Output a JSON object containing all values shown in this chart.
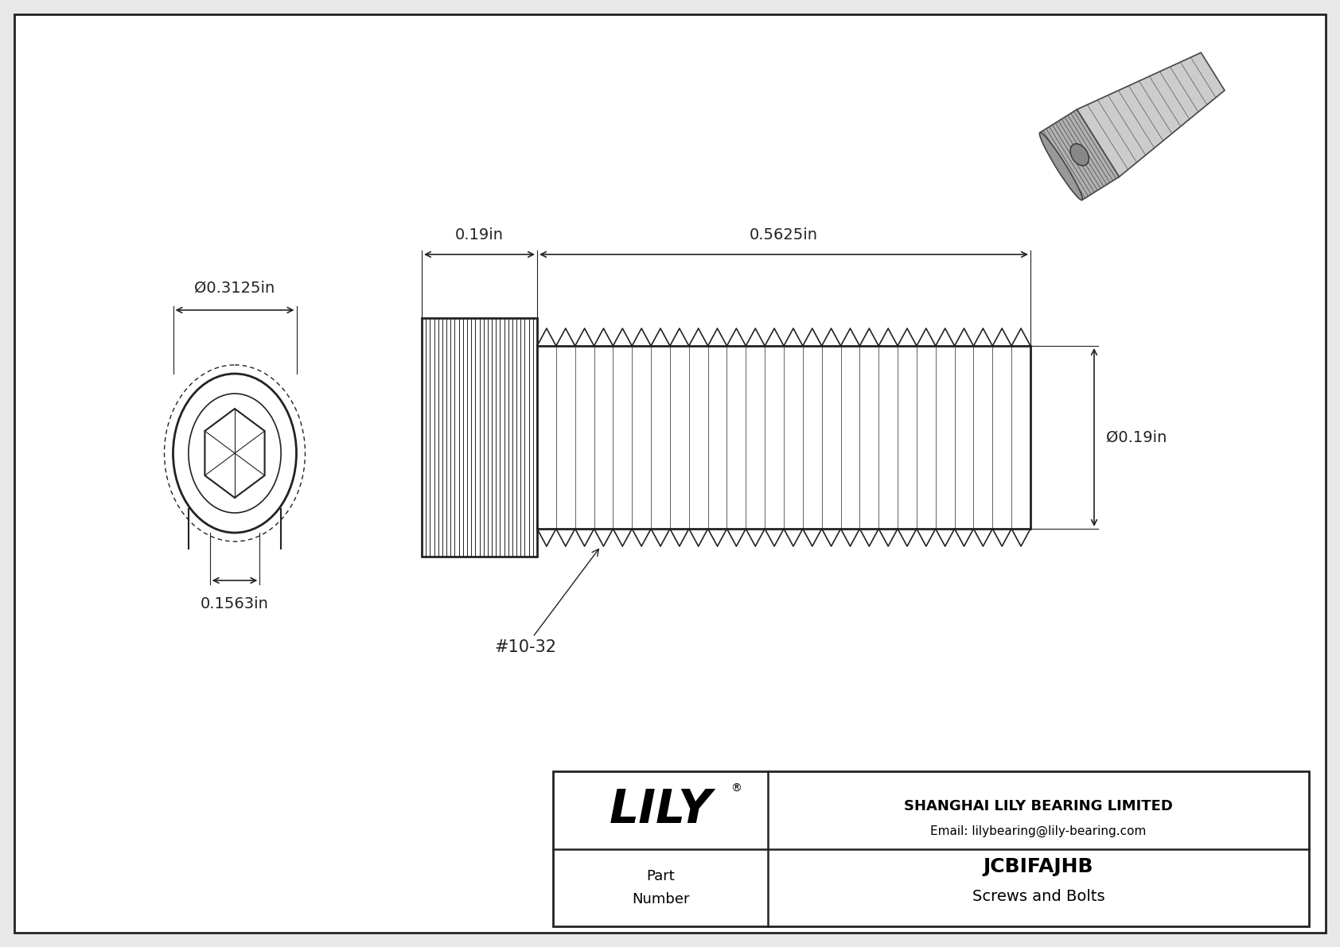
{
  "bg_color": "#e8e8e8",
  "inner_bg": "#f5f5f5",
  "border_color": "#222222",
  "line_color": "#222222",
  "text_color": "#222222",
  "title": "JCBIFAJHB",
  "subtitle": "Screws and Bolts",
  "company": "SHANGHAI LILY BEARING LIMITED",
  "email": "Email: lilybearing@lily-bearing.com",
  "part_label": "Part\nNumber",
  "logo_text": "LILY",
  "logo_reg": "®",
  "dim_dia_head": "Ø0.3125in",
  "dim_hex_width": "0.1563in",
  "dim_head_len": "0.19in",
  "dim_thread_len": "0.5625in",
  "dim_thread_dia": "Ø0.19in",
  "thread_label": "#10-32"
}
